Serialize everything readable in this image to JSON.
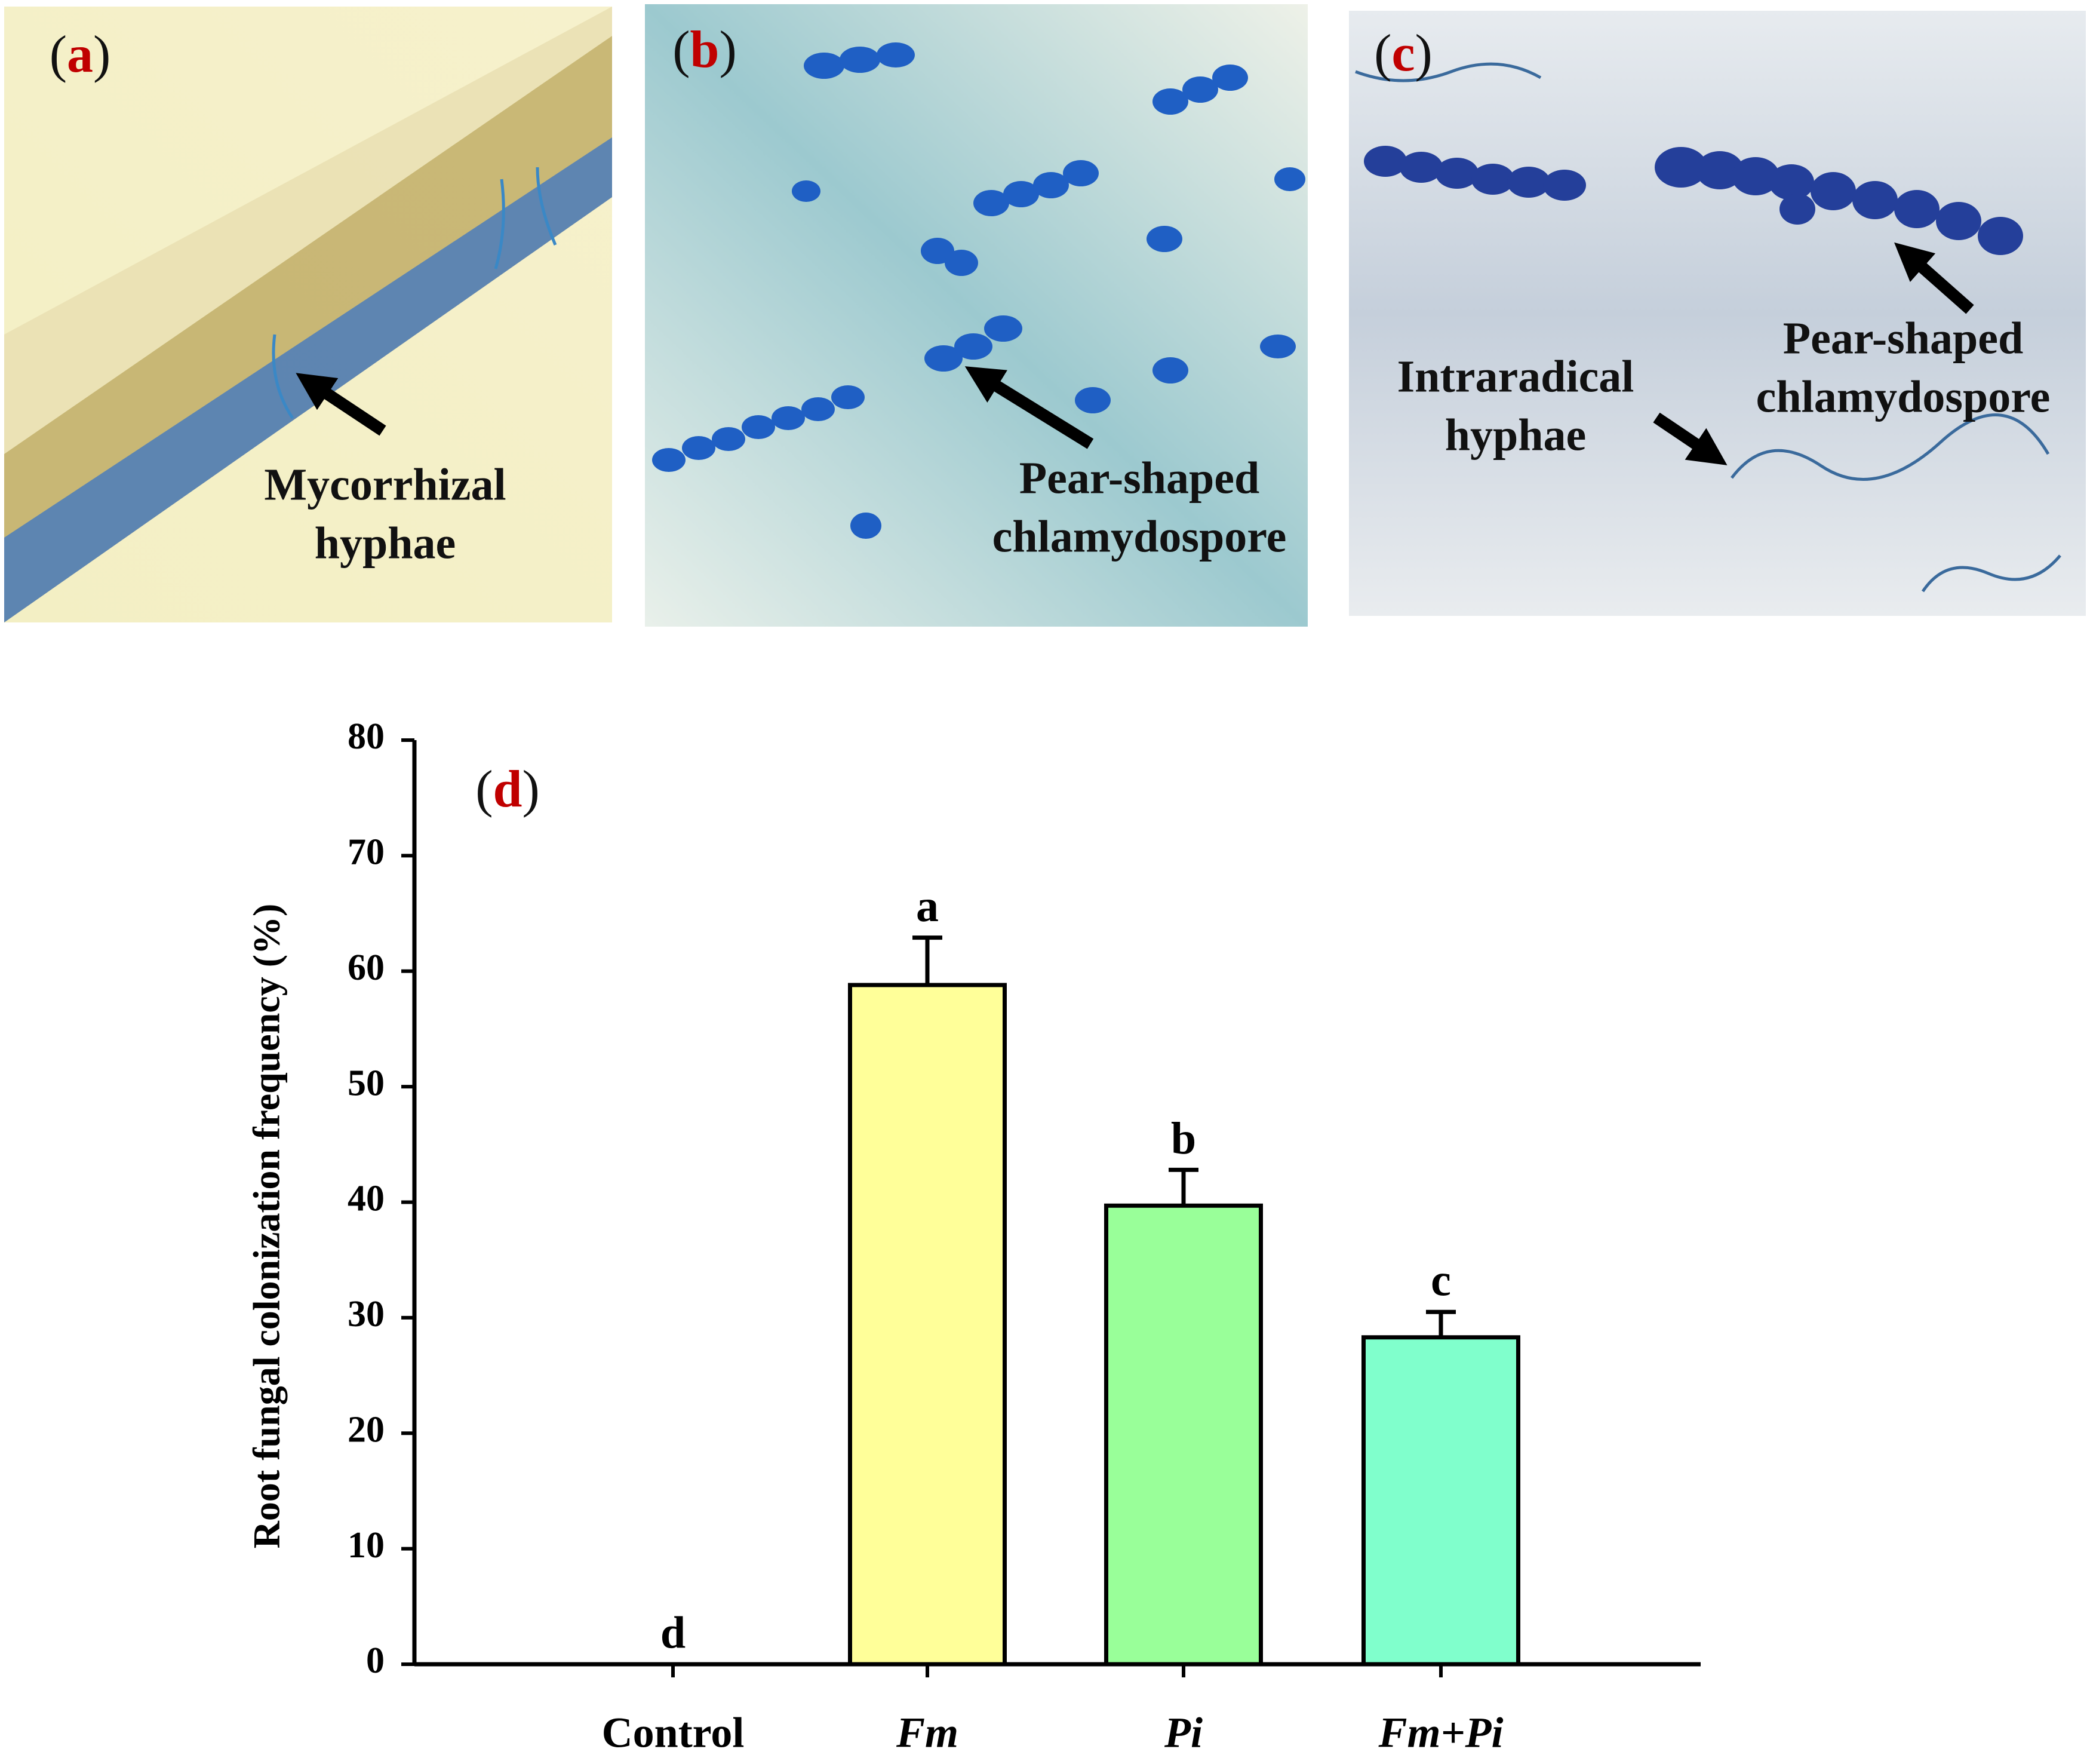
{
  "panels": [
    {
      "label": "(a)",
      "annotations": [
        {
          "lines": [
            "Mycorrhizal",
            "hyphae"
          ]
        }
      ]
    },
    {
      "label": "(b)",
      "annotations": [
        {
          "lines": [
            "Pear-shaped",
            "chlamydospore"
          ]
        }
      ]
    },
    {
      "label": "(c)",
      "annotations": [
        {
          "lines": [
            "Intraradical",
            "hyphae"
          ]
        },
        {
          "lines": [
            "Pear-shaped",
            "chlamydospore"
          ]
        }
      ]
    }
  ],
  "chart_data": {
    "type": "bar",
    "panel_label": "(d)",
    "y_label": "Root fungal colonization frequency (%)",
    "categories": [
      "Control",
      "Fm",
      "Pi",
      "Fm+Pi"
    ],
    "category_styles": [
      "normal",
      "italic",
      "italic",
      "italic"
    ],
    "values": [
      0,
      58.8,
      39.7,
      28.3
    ],
    "errors": [
      0,
      4.1,
      3.1,
      2.2
    ],
    "significance_labels": [
      "d",
      "a",
      "b",
      "c"
    ],
    "colors": [
      "#ffffff",
      "#ffff99",
      "#99ff99",
      "#80ffcc"
    ],
    "ylim": [
      0,
      80
    ],
    "yticks": [
      0,
      10,
      20,
      30,
      40,
      50,
      60,
      70,
      80
    ]
  }
}
